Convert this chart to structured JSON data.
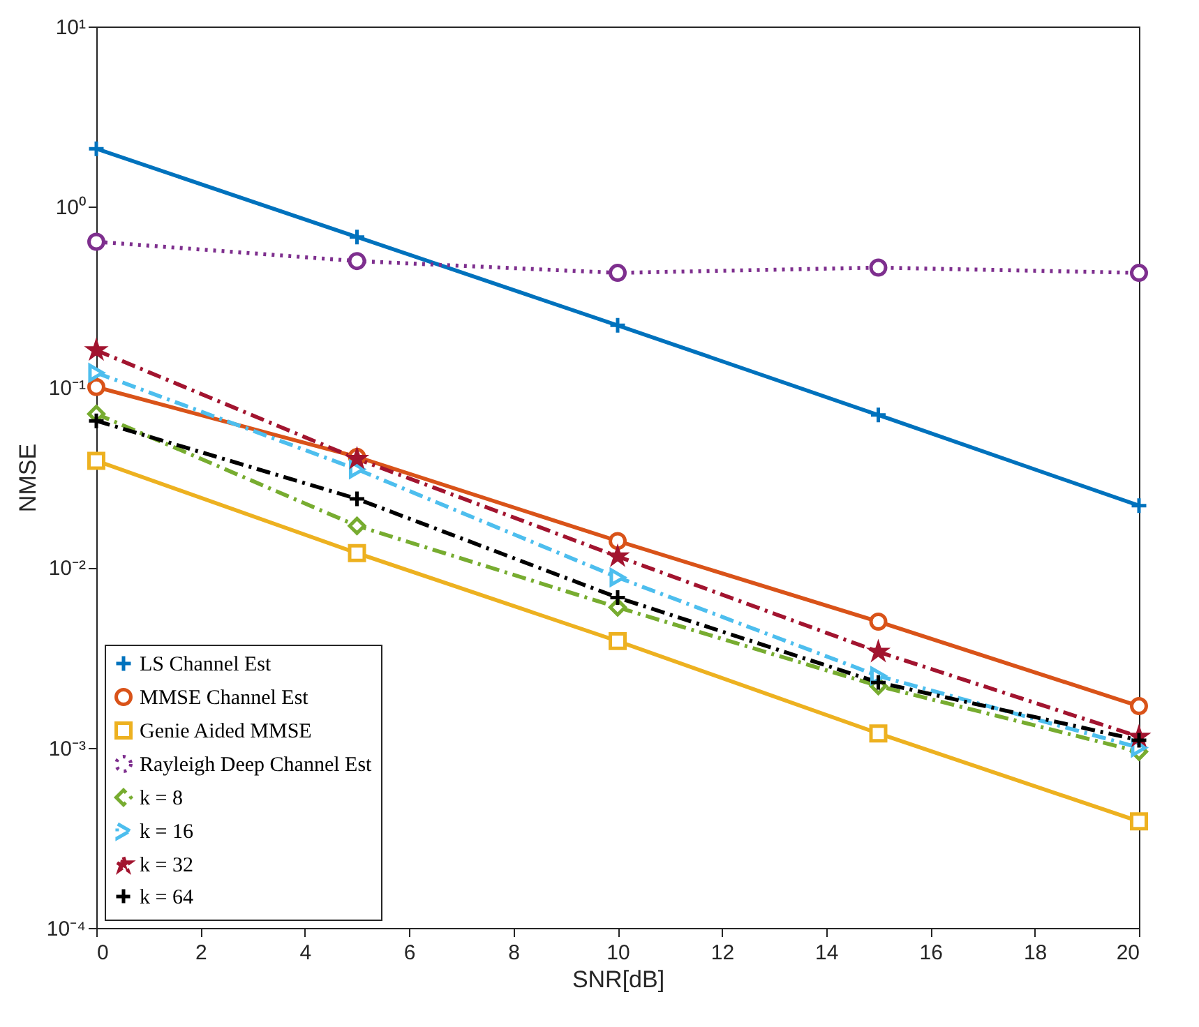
{
  "chart_data": {
    "type": "line",
    "xlabel": "SNR[dB]",
    "ylabel": "NMSE",
    "log": "y",
    "grid": false,
    "legend": "bottom left",
    "x": [
      0,
      5,
      10,
      15,
      20
    ],
    "xlim": [
      0,
      20
    ],
    "xticks": [
      0,
      2,
      4,
      6,
      8,
      10,
      12,
      14,
      16,
      18,
      20
    ],
    "ylim": [
      0.0001,
      10
    ],
    "yticks": [
      {
        "value": 0.0001,
        "label": "10⁻⁴"
      },
      {
        "value": 0.001,
        "label": "10⁻³"
      },
      {
        "value": 0.01,
        "label": "10⁻²"
      },
      {
        "value": 0.1,
        "label": "10⁻¹"
      },
      {
        "value": 1,
        "label": "10⁰"
      },
      {
        "value": 10,
        "label": "10¹"
      }
    ],
    "series": [
      {
        "name": "LS Channel Est",
        "color": "#0072bd",
        "marker": "cross",
        "line_style": "solid",
        "values": [
          2.1,
          0.68,
          0.22,
          0.07,
          0.022
        ]
      },
      {
        "name": "MMSE Channel Est",
        "color": "#d95319",
        "marker": "circle",
        "line_style": "solid",
        "values": [
          0.1,
          0.041,
          0.014,
          0.005,
          0.0017
        ]
      },
      {
        "name": "Genie Aided MMSE",
        "color": "#edb120",
        "marker": "square",
        "line_style": "solid",
        "values": [
          0.039,
          0.012,
          0.0039,
          0.0012,
          0.00039
        ]
      },
      {
        "name": "Rayleigh Deep Channel Est",
        "color": "#7e2f8e",
        "marker": "circle",
        "line_style": "dotted",
        "values": [
          0.64,
          0.5,
          0.43,
          0.46,
          0.43
        ]
      },
      {
        "name": "k = 8",
        "color": "#77ac30",
        "marker": "diamond",
        "line_style": "dashed",
        "values": [
          0.071,
          0.017,
          0.006,
          0.0022,
          0.00095
        ]
      },
      {
        "name": "k = 16",
        "color": "#4dbeee",
        "marker": "triangle",
        "line_style": "dashed",
        "values": [
          0.12,
          0.035,
          0.0088,
          0.0025,
          0.001
        ]
      },
      {
        "name": "k = 32",
        "color": "#a2142f",
        "marker": "star",
        "line_style": "dashed",
        "values": [
          0.16,
          0.04,
          0.0115,
          0.0034,
          0.00115
        ]
      },
      {
        "name": "k = 64",
        "color": "#000000",
        "marker": "cross",
        "line_style": "dashed",
        "values": [
          0.065,
          0.024,
          0.0068,
          0.0023,
          0.0011
        ]
      }
    ]
  }
}
